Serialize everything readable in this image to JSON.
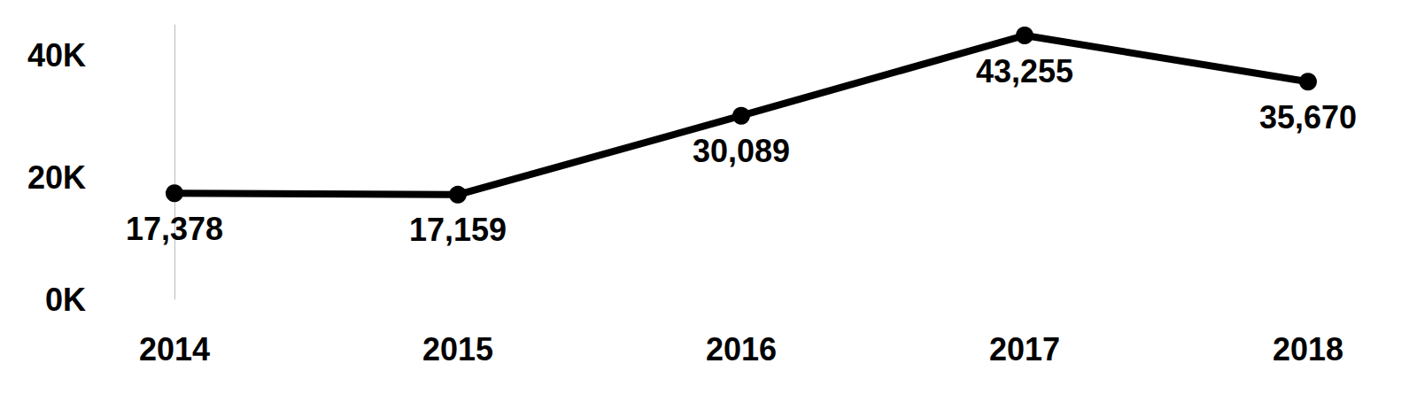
{
  "chart_data": {
    "type": "line",
    "categories": [
      "2014",
      "2015",
      "2016",
      "2017",
      "2018"
    ],
    "values": [
      17378,
      17159,
      30089,
      43255,
      35670
    ],
    "value_labels": [
      "17,378",
      "17,159",
      "30,089",
      "43,255",
      "35,670"
    ],
    "color": "#000000",
    "ylim": [
      0,
      45000
    ],
    "yticks": [
      {
        "value": 0,
        "label": "0K"
      },
      {
        "value": 20000,
        "label": "20K"
      },
      {
        "value": 40000,
        "label": "40K"
      }
    ],
    "grid": false,
    "data_labels": true,
    "marker": "circle"
  }
}
